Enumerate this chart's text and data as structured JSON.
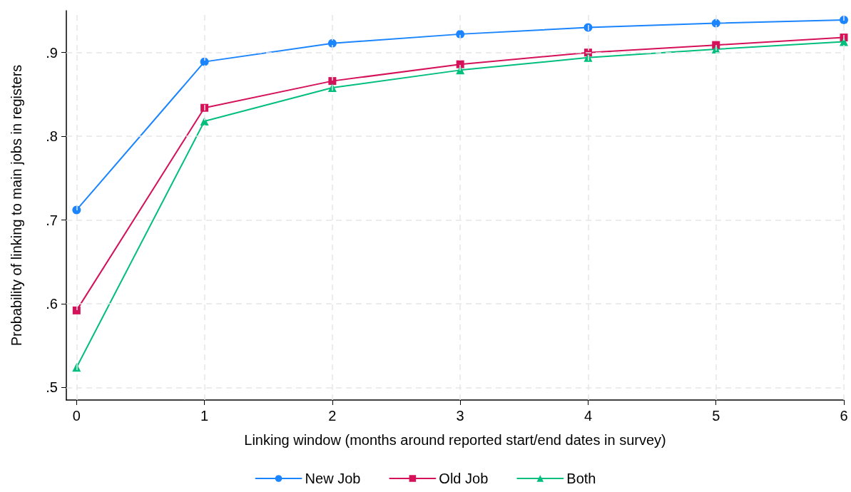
{
  "chart_data": {
    "type": "line",
    "xlabel": "Linking window (months around reported start/end dates in survey)",
    "ylabel": "Probability of linking to main jobs in registers",
    "x": [
      0,
      1,
      2,
      3,
      4,
      5,
      6
    ],
    "series": [
      {
        "name": "New Job",
        "color": "#1a85ff",
        "marker": "circle",
        "values": [
          0.712,
          0.889,
          0.911,
          0.922,
          0.93,
          0.935,
          0.939
        ]
      },
      {
        "name": "Old Job",
        "color": "#d41159",
        "marker": "square",
        "values": [
          0.592,
          0.834,
          0.866,
          0.886,
          0.9,
          0.909,
          0.918
        ]
      },
      {
        "name": "Both",
        "color": "#00bf7d",
        "marker": "triangle",
        "values": [
          0.524,
          0.818,
          0.858,
          0.879,
          0.894,
          0.904,
          0.913
        ]
      }
    ],
    "xlim": [
      -0.08,
      6
    ],
    "xticks": [
      0,
      1,
      2,
      3,
      4,
      5,
      6
    ],
    "ylim": [
      0.485,
      0.95
    ],
    "yticks": [
      {
        "value": 0.5,
        "label": ".5"
      },
      {
        "value": 0.6,
        "label": ".6"
      },
      {
        "value": 0.7,
        "label": ".7"
      },
      {
        "value": 0.8,
        "label": ".8"
      },
      {
        "value": 0.9,
        "label": ".9"
      }
    ],
    "grid": true,
    "legend": "bottom",
    "line_style": "solid"
  }
}
